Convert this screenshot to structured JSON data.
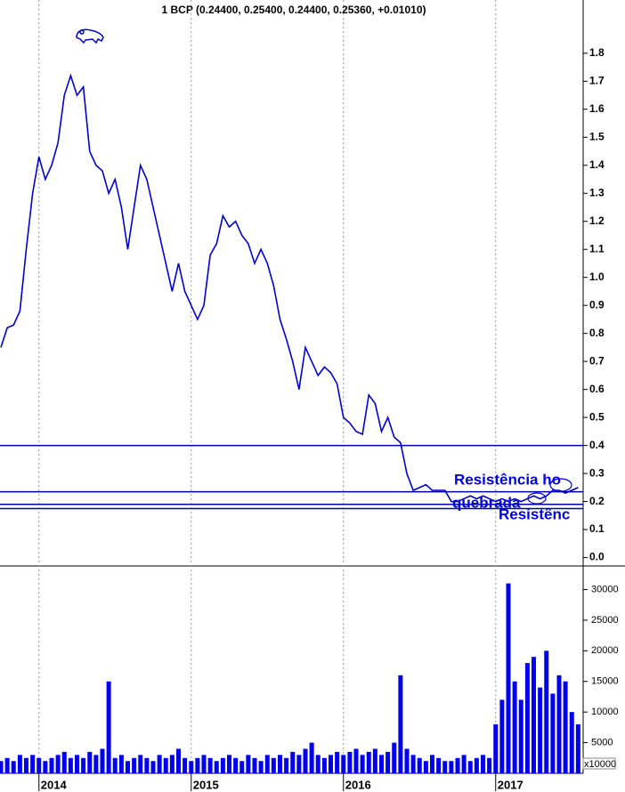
{
  "chart_data": [
    {
      "type": "line",
      "title": "1 BCP (0.24400, 0.25400, 0.24400, 0.25360, +0.01010)",
      "color": "#0000cc",
      "values": [
        0.75,
        0.82,
        0.83,
        0.88,
        1.1,
        1.3,
        1.43,
        1.35,
        1.4,
        1.48,
        1.65,
        1.72,
        1.65,
        1.68,
        1.45,
        1.4,
        1.38,
        1.3,
        1.35,
        1.25,
        1.1,
        1.25,
        1.4,
        1.35,
        1.25,
        1.15,
        1.05,
        0.95,
        1.05,
        0.95,
        0.9,
        0.85,
        0.9,
        1.08,
        1.12,
        1.22,
        1.18,
        1.2,
        1.15,
        1.12,
        1.05,
        1.1,
        1.05,
        0.97,
        0.85,
        0.78,
        0.7,
        0.6,
        0.75,
        0.7,
        0.65,
        0.68,
        0.66,
        0.62,
        0.5,
        0.48,
        0.45,
        0.44,
        0.58,
        0.55,
        0.45,
        0.5,
        0.43,
        0.41,
        0.3,
        0.24,
        0.25,
        0.26,
        0.24,
        0.24,
        0.24,
        0.2,
        0.2,
        0.21,
        0.22,
        0.21,
        0.22,
        0.21,
        0.2,
        0.21,
        0.2,
        0.21,
        0.2,
        0.21,
        0.22,
        0.21,
        0.22,
        0.24,
        0.24,
        0.23,
        0.24,
        0.25
      ],
      "ylim": [
        -0.03,
        1.99
      ],
      "yticks": [
        {
          "value": 0,
          "label": "0.0"
        },
        0.1,
        0.2,
        0.3,
        0.4,
        0.5,
        0.6,
        0.7,
        0.8,
        0.9,
        {
          "value": 1,
          "label": "1.0"
        },
        1.1,
        1.2,
        1.3,
        1.4,
        1.5,
        1.6,
        1.7,
        1.8
      ],
      "hlines": [
        0.4,
        0.235,
        0.19,
        0.175
      ],
      "hline_color": "#0000aa",
      "annotations": [
        "Resistência ho",
        "quebrada",
        "Resistênc"
      ]
    },
    {
      "type": "bar",
      "color": "#0000ee",
      "categories": [
        null,
        null,
        null,
        null,
        null,
        null,
        "2014",
        null,
        null,
        null,
        null,
        null,
        null,
        null,
        null,
        null,
        null,
        null,
        null,
        null,
        null,
        null,
        null,
        null,
        null,
        null,
        null,
        null,
        null,
        null,
        "2015",
        null,
        null,
        null,
        null,
        null,
        null,
        null,
        null,
        null,
        null,
        null,
        null,
        null,
        null,
        null,
        null,
        null,
        null,
        null,
        null,
        null,
        null,
        null,
        "2016",
        null,
        null,
        null,
        null,
        null,
        null,
        null,
        null,
        null,
        null,
        null,
        null,
        null,
        null,
        null,
        null,
        null,
        null,
        null,
        null,
        null,
        null,
        null,
        "2017",
        null,
        null,
        null,
        null,
        null,
        null,
        null,
        null,
        null,
        null,
        null,
        null,
        null
      ],
      "values": [
        2000,
        2500,
        2000,
        3000,
        2500,
        3000,
        2500,
        2000,
        2500,
        3000,
        3500,
        2500,
        3000,
        2500,
        3500,
        3000,
        4000,
        15000,
        2500,
        3000,
        2000,
        2500,
        3000,
        2500,
        2000,
        3000,
        2500,
        3000,
        4000,
        2500,
        2000,
        2500,
        3000,
        2500,
        2000,
        2500,
        3000,
        2500,
        2000,
        3000,
        2500,
        2000,
        3000,
        2500,
        3000,
        2500,
        3500,
        3000,
        4000,
        5000,
        3000,
        2500,
        3000,
        3500,
        3000,
        3500,
        4000,
        3000,
        3500,
        4000,
        3000,
        3500,
        5000,
        16000,
        4000,
        3000,
        2500,
        2000,
        3000,
        2500,
        2000,
        2000,
        2500,
        3000,
        2000,
        2500,
        3000,
        2500,
        8000,
        12000,
        31000,
        15000,
        12000,
        18000,
        19000,
        14000,
        20000,
        13000,
        16000,
        15000,
        10000,
        8000
      ],
      "ylim": [
        0,
        33700
      ],
      "yticks": [
        5000,
        10000,
        15000,
        20000,
        25000,
        30000
      ],
      "unit_label": "x10000"
    }
  ]
}
